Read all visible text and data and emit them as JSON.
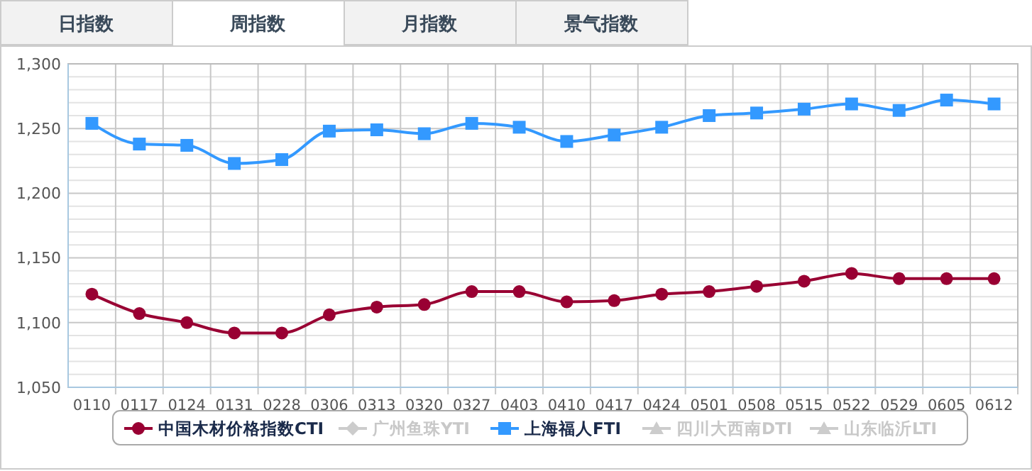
{
  "chart_data": {
    "type": "line",
    "annotations": [
      "日指数",
      "周指数",
      "月指数",
      "景气指数"
    ],
    "categories": [
      "0110",
      "0117",
      "0124",
      "0131",
      "0228",
      "0306",
      "0313",
      "0320",
      "0327",
      "0403",
      "0410",
      "0417",
      "0424",
      "0501",
      "0508",
      "0515",
      "0522",
      "0529",
      "0605",
      "0612"
    ],
    "series": [
      {
        "name": "中国木材价格指数CTI",
        "color": "#990033",
        "marker": "circle",
        "values": [
          1122,
          1107,
          1100,
          1092,
          1092,
          1106,
          1112,
          1114,
          1124,
          1124,
          1116,
          1117,
          1122,
          1124,
          1128,
          1132,
          1138,
          1134,
          1134,
          1134
        ]
      },
      {
        "name": "广州鱼珠YTI",
        "color": "#cccccc",
        "marker": "diamond",
        "values": [
          null,
          null,
          null,
          null,
          null,
          null,
          null,
          null,
          null,
          null,
          null,
          null,
          null,
          null,
          null,
          null,
          null,
          null,
          null,
          null
        ]
      },
      {
        "name": "上海福人FTI",
        "color": "#3399ff",
        "marker": "square",
        "values": [
          1254,
          1238,
          1237,
          1223,
          1226,
          1248,
          1249,
          1246,
          1254,
          1251,
          1240,
          1245,
          1251,
          1260,
          1262,
          1265,
          1269,
          1264,
          1272,
          1269
        ]
      },
      {
        "name": "四川大西南DTI",
        "color": "#cccccc",
        "marker": "triangle",
        "values": [
          null,
          null,
          null,
          null,
          null,
          null,
          null,
          null,
          null,
          null,
          null,
          null,
          null,
          null,
          null,
          null,
          null,
          null,
          null,
          null
        ]
      },
      {
        "name": "山东临沂LTI",
        "color": "#cccccc",
        "marker": "triangle",
        "values": [
          null,
          null,
          null,
          null,
          null,
          null,
          null,
          null,
          null,
          null,
          null,
          null,
          null,
          null,
          null,
          null,
          null,
          null,
          null,
          null
        ]
      }
    ],
    "ylim": [
      1050,
      1300
    ],
    "yticks": [
      {
        "value": 1050,
        "label": "1,050"
      },
      {
        "value": 1060,
        "label": null
      },
      {
        "value": 1070,
        "label": null
      },
      {
        "value": 1080,
        "label": null
      },
      {
        "value": 1090,
        "label": null
      },
      {
        "value": 1100,
        "label": "1,100"
      },
      {
        "value": 1110,
        "label": null
      },
      {
        "value": 1120,
        "label": null
      },
      {
        "value": 1130,
        "label": null
      },
      {
        "value": 1140,
        "label": null
      },
      {
        "value": 1150,
        "label": "1,150"
      },
      {
        "value": 1160,
        "label": null
      },
      {
        "value": 1170,
        "label": null
      },
      {
        "value": 1180,
        "label": null
      },
      {
        "value": 1190,
        "label": null
      },
      {
        "value": 1200,
        "label": "1,200"
      },
      {
        "value": 1210,
        "label": null
      },
      {
        "value": 1220,
        "label": null
      },
      {
        "value": 1230,
        "label": null
      },
      {
        "value": 1240,
        "label": null
      },
      {
        "value": 1250,
        "label": "1,250"
      },
      {
        "value": 1260,
        "label": null
      },
      {
        "value": 1270,
        "label": null
      },
      {
        "value": 1280,
        "label": null
      },
      {
        "value": 1290,
        "label": null
      },
      {
        "value": 1300,
        "label": "1,300"
      }
    ],
    "grid": true,
    "legend": "bottom",
    "line_style": "solid"
  }
}
